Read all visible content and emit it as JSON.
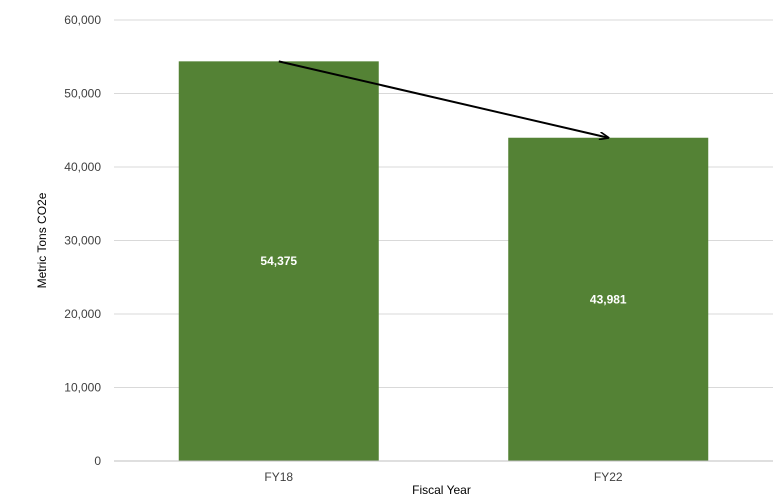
{
  "colors": {
    "bar": "#548235",
    "gridline": "#d9d9d9",
    "axis_line": "#bfbfbf",
    "arrow": "#000000",
    "bar_label_text": "#ffffff"
  },
  "chart_data": {
    "type": "bar",
    "categories": [
      "FY18",
      "FY22"
    ],
    "values": [
      54375,
      43981
    ],
    "data_labels": [
      "54,375",
      "43,981"
    ],
    "title": "",
    "xlabel": "Fiscal Year",
    "ylabel": "Metric Tons CO2e",
    "ylim": [
      0,
      60000
    ],
    "y_ticks": [
      0,
      10000,
      20000,
      30000,
      40000,
      50000,
      60000
    ],
    "y_tick_labels": [
      "0",
      "10,000",
      "20,000",
      "30,000",
      "40,000",
      "50,000",
      "60,000"
    ],
    "grid": true,
    "legend": "none",
    "annotation": "arrow from top of FY18 bar to top of FY22 bar"
  }
}
